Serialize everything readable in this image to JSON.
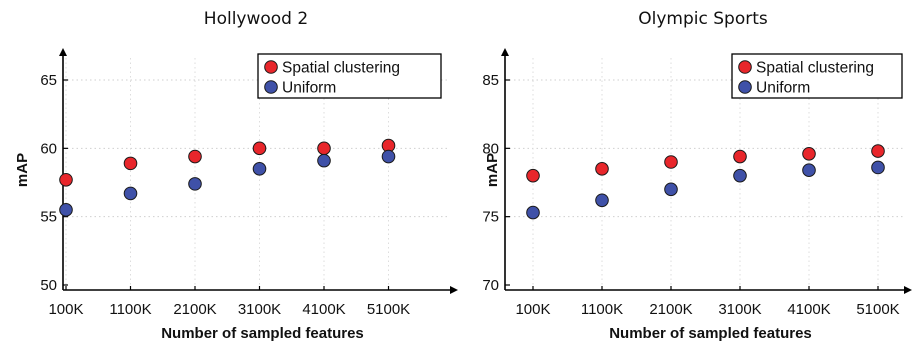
{
  "chart_data": [
    {
      "type": "scatter",
      "title": "Hollywood 2",
      "xlabel": "Number of sampled features",
      "ylabel": "mAP",
      "categories": [
        "100K",
        "1100K",
        "2100K",
        "3100K",
        "4100K",
        "5100K"
      ],
      "ylim": [
        50,
        65
      ],
      "yticks": [
        50,
        55,
        60,
        65
      ],
      "grid": "dotted",
      "legend_position": "top-right",
      "series": [
        {
          "name": "Spatial clustering",
          "color": "#e8262b",
          "values": [
            57.7,
            58.9,
            59.4,
            60.0,
            60.0,
            60.2
          ]
        },
        {
          "name": "Uniform",
          "color": "#3f51a8",
          "values": [
            55.5,
            56.7,
            57.4,
            58.5,
            59.1,
            59.4
          ]
        }
      ]
    },
    {
      "type": "scatter",
      "title": "Olympic Sports",
      "xlabel": "Number of sampled features",
      "ylabel": "mAP",
      "categories": [
        "100K",
        "1100K",
        "2100K",
        "3100K",
        "4100K",
        "5100K"
      ],
      "ylim": [
        70,
        85
      ],
      "yticks": [
        70,
        75,
        80,
        85
      ],
      "grid": "dotted",
      "legend_position": "top-right",
      "series": [
        {
          "name": "Spatial clustering",
          "color": "#e8262b",
          "values": [
            78.0,
            78.5,
            79.0,
            79.4,
            79.6,
            79.8
          ]
        },
        {
          "name": "Uniform",
          "color": "#3f51a8",
          "values": [
            75.3,
            76.2,
            77.0,
            78.0,
            78.4,
            78.6
          ]
        }
      ]
    }
  ]
}
